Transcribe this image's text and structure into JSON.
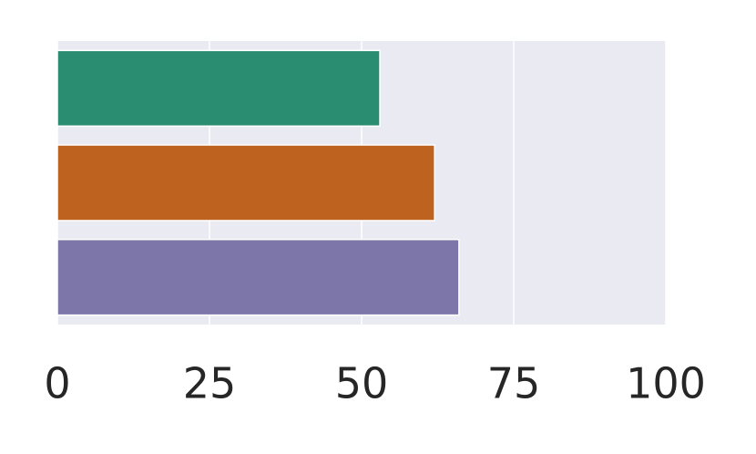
{
  "chart_data": {
    "type": "bar",
    "orientation": "horizontal",
    "categories": [
      null,
      null,
      null
    ],
    "values": [
      53,
      62,
      66
    ],
    "colors": [
      "#2a8c70",
      "#bd621f",
      "#7d77a9"
    ],
    "xlim": [
      0,
      100
    ],
    "xticks": [
      0,
      25,
      50,
      75,
      100
    ],
    "grid": true
  }
}
